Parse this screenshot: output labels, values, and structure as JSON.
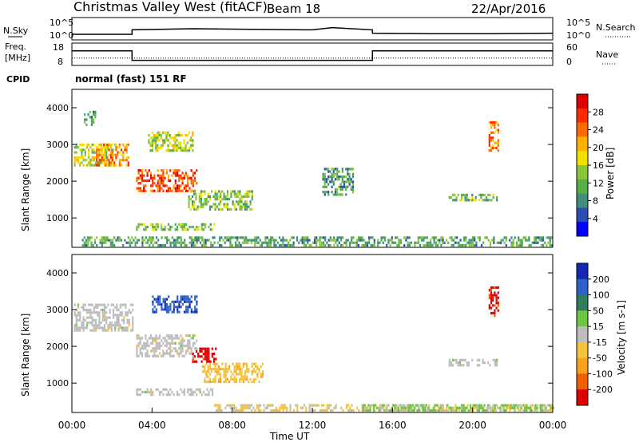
{
  "header": {
    "station": "Christmas Valley West (fitACF)",
    "beam": "Beam 18",
    "date": "22/Apr/2016"
  },
  "left_labels": {
    "nsky": "N.Sky",
    "freq_line1": "Freq.",
    "freq_line2": "[MHz]",
    "cpid": "CPID"
  },
  "right_labels": {
    "nsearch": "N.Search",
    "nave": "Nave"
  },
  "cpid_text": "normal (fast) 151 RF",
  "colors": {
    "power_scale": [
      "#0000ff",
      "#2a4fb0",
      "#3f8f7a",
      "#55b04a",
      "#8ac63c",
      "#f2e000",
      "#ffb000",
      "#ff6a00",
      "#ff2a00",
      "#e00000"
    ],
    "velocity_scale": [
      "#1428b4",
      "#2f62c8",
      "#2f7d5a",
      "#6ec640",
      "#bdbdbd",
      "#f5c23a",
      "#f7a21a",
      "#f06000",
      "#e00000"
    ],
    "trace": "#000000"
  },
  "chart_data": [
    {
      "type": "line",
      "name": "noise-panel",
      "left_axis": {
        "label": "N.Sky",
        "ticks": [
          "10^5",
          "10^0"
        ]
      },
      "right_axis": {
        "label": "N.Search",
        "ticks": [
          "10^5",
          "10^0"
        ]
      },
      "x": [
        "00:00",
        "03:00",
        "03:00",
        "06:00",
        "09:00",
        "12:00",
        "13:00",
        "15:00",
        "15:00",
        "18:00",
        "21:00",
        "24:00"
      ],
      "series": [
        {
          "values": [
            0.25,
            0.25,
            0.45,
            0.5,
            0.47,
            0.45,
            0.55,
            0.45,
            0.3,
            0.28,
            0.28,
            0.3
          ]
        }
      ]
    },
    {
      "type": "line",
      "name": "frequency-panel",
      "left_axis": {
        "label": "Freq. [MHz]",
        "ticks": [
          "18",
          "8"
        ],
        "ylim": [
          8,
          18
        ]
      },
      "right_axis": {
        "label": "Nave",
        "ticks": [
          "60",
          "0"
        ],
        "ylim": [
          0,
          60
        ]
      },
      "x": [
        "00:00",
        "03:00",
        "03:00",
        "15:00",
        "15:00",
        "24:00"
      ],
      "series": [
        {
          "values": [
            14.5,
            14.5,
            10.3,
            10.3,
            14.5,
            14.5
          ]
        },
        {
          "values": [
            20,
            20,
            20,
            20,
            20,
            20
          ]
        }
      ]
    },
    {
      "type": "heatmap",
      "name": "power-panel",
      "ylabel": "Slant Range [km]",
      "yticks": [
        "1000",
        "2000",
        "3000",
        "4000"
      ],
      "ylim": [
        200,
        4500
      ],
      "xlim": [
        0,
        24
      ],
      "colorbar": {
        "label": "Power [dB]",
        "ticks": [
          "4",
          "8",
          "12",
          "16",
          "20",
          "24",
          "28"
        ],
        "range": [
          0,
          30
        ]
      },
      "regions": [
        {
          "t": [
            0.1,
            2.2
          ],
          "r": [
            2400,
            3000
          ],
          "v": 15
        },
        {
          "t": [
            1.2,
            2.8
          ],
          "r": [
            2400,
            3000
          ],
          "v": 21
        },
        {
          "t": [
            0.6,
            1.2
          ],
          "r": [
            3500,
            3900
          ],
          "v": 10
        },
        {
          "t": [
            3.2,
            6.2
          ],
          "r": [
            1700,
            2300
          ],
          "v": 24
        },
        {
          "t": [
            3.8,
            6.0
          ],
          "r": [
            2800,
            3300
          ],
          "v": 14
        },
        {
          "t": [
            5.8,
            9.0
          ],
          "r": [
            1200,
            1700
          ],
          "v": 12
        },
        {
          "t": [
            3.2,
            7.2
          ],
          "r": [
            650,
            850
          ],
          "v": 13
        },
        {
          "t": [
            0.5,
            24.0
          ],
          "r": [
            220,
            450
          ],
          "v": 10
        },
        {
          "t": [
            18.8,
            21.2
          ],
          "r": [
            1450,
            1600
          ],
          "v": 12
        },
        {
          "t": [
            20.8,
            21.3
          ],
          "r": [
            2800,
            3600
          ],
          "v": 22
        },
        {
          "t": [
            12.5,
            14.0
          ],
          "r": [
            1600,
            2300
          ],
          "v": 9
        }
      ]
    },
    {
      "type": "heatmap",
      "name": "velocity-panel",
      "ylabel": "Slant Range [km]",
      "yticks": [
        "1000",
        "2000",
        "3000",
        "4000"
      ],
      "ylim": [
        200,
        4500
      ],
      "xlim": [
        0,
        24
      ],
      "xticks": [
        "00:00",
        "04:00",
        "08:00",
        "12:00",
        "16:00",
        "20:00",
        "00:00"
      ],
      "xlabel": "Time UT",
      "colorbar": {
        "label": "Velocity [m s-1]",
        "ticks": [
          "200",
          "100",
          "50",
          "15",
          "-15",
          "-50",
          "-100",
          "-200"
        ],
        "range": [
          -250,
          250
        ]
      },
      "regions": [
        {
          "t": [
            0.1,
            3.0
          ],
          "r": [
            2400,
            3100
          ],
          "v": 0
        },
        {
          "t": [
            4.0,
            6.2
          ],
          "r": [
            2900,
            3350
          ],
          "v": 180
        },
        {
          "t": [
            3.2,
            6.2
          ],
          "r": [
            1700,
            2300
          ],
          "v": 0
        },
        {
          "t": [
            6.0,
            7.2
          ],
          "r": [
            1550,
            1900
          ],
          "v": -220
        },
        {
          "t": [
            6.5,
            9.5
          ],
          "r": [
            1000,
            1500
          ],
          "v": -60
        },
        {
          "t": [
            3.2,
            7.0
          ],
          "r": [
            650,
            850
          ],
          "v": 0
        },
        {
          "t": [
            7.0,
            24.0
          ],
          "r": [
            220,
            420
          ],
          "v": -40
        },
        {
          "t": [
            14.5,
            24.0
          ],
          "r": [
            220,
            420
          ],
          "v": 40
        },
        {
          "t": [
            18.8,
            21.2
          ],
          "r": [
            1450,
            1600
          ],
          "v": 0
        },
        {
          "t": [
            20.8,
            21.3
          ],
          "r": [
            2800,
            3600
          ],
          "v": -220
        }
      ]
    }
  ]
}
